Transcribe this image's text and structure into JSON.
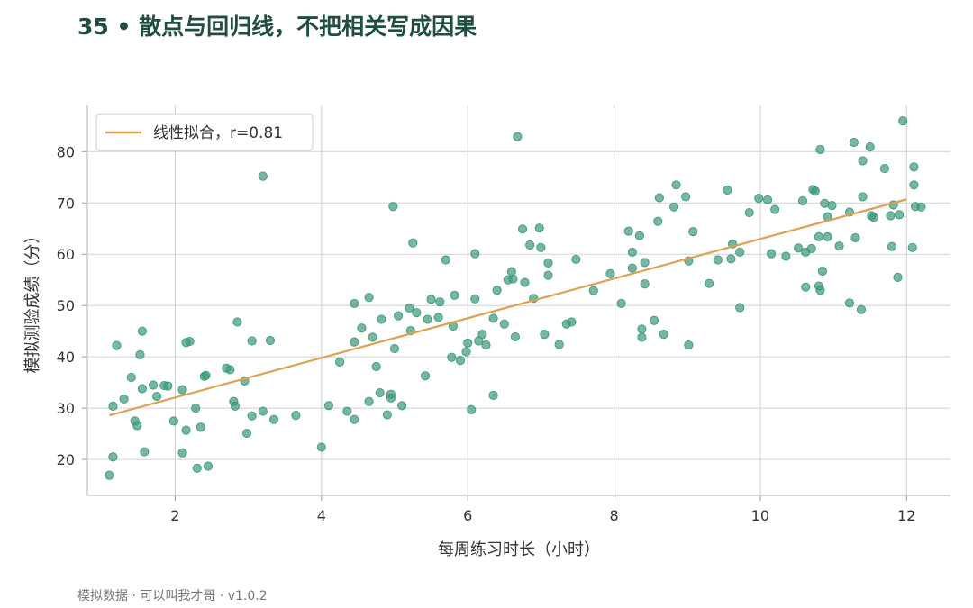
{
  "page": {
    "title": "35 • 散点与回归线，不把相关写成因果",
    "footer": "模拟数据 · 可以叫我才哥 · v1.0.2"
  },
  "colors": {
    "title": "#1f4e3d",
    "point": "#3a9a76",
    "line": "#e0a04f",
    "grid": "#d0d0d0",
    "axis": "#cccccc"
  },
  "chart_data": {
    "type": "scatter",
    "xlabel": "每周练习时长（小时）",
    "ylabel": "模拟测验成绩（分）",
    "xlim": [
      0.8,
      12.6
    ],
    "ylim": [
      13,
      89
    ],
    "xticks": [
      2,
      4,
      6,
      8,
      10,
      12
    ],
    "yticks": [
      20,
      30,
      40,
      50,
      60,
      70,
      80
    ],
    "grid": true,
    "legend": "top-left",
    "fit_line": {
      "name": "线性拟合，r=0.81",
      "x": [
        1.1,
        12.0
      ],
      "y": [
        28.6,
        70.7
      ]
    },
    "points": [
      [
        1.1,
        16.9
      ],
      [
        1.15,
        20.5
      ],
      [
        1.15,
        30.4
      ],
      [
        1.2,
        42.2
      ],
      [
        1.3,
        31.8
      ],
      [
        1.4,
        36.0
      ],
      [
        1.45,
        27.5
      ],
      [
        1.48,
        26.6
      ],
      [
        1.52,
        40.4
      ],
      [
        1.55,
        45.0
      ],
      [
        1.55,
        33.8
      ],
      [
        1.58,
        21.5
      ],
      [
        1.7,
        34.5
      ],
      [
        1.75,
        32.3
      ],
      [
        1.85,
        34.4
      ],
      [
        1.9,
        34.3
      ],
      [
        1.98,
        27.5
      ],
      [
        2.1,
        21.3
      ],
      [
        2.1,
        33.6
      ],
      [
        2.15,
        25.7
      ],
      [
        2.15,
        42.8
      ],
      [
        2.2,
        43.0
      ],
      [
        2.28,
        30.0
      ],
      [
        2.3,
        18.3
      ],
      [
        2.35,
        26.3
      ],
      [
        2.4,
        36.2
      ],
      [
        2.42,
        36.4
      ],
      [
        2.45,
        18.7
      ],
      [
        2.7,
        37.8
      ],
      [
        2.75,
        37.5
      ],
      [
        2.8,
        31.3
      ],
      [
        2.82,
        30.4
      ],
      [
        2.85,
        46.8
      ],
      [
        2.95,
        35.3
      ],
      [
        2.98,
        25.1
      ],
      [
        3.05,
        28.5
      ],
      [
        3.05,
        43.1
      ],
      [
        3.2,
        75.2
      ],
      [
        3.2,
        29.4
      ],
      [
        3.3,
        43.2
      ],
      [
        3.35,
        27.8
      ],
      [
        3.65,
        28.6
      ],
      [
        4.0,
        22.4
      ],
      [
        4.1,
        30.5
      ],
      [
        4.25,
        39.0
      ],
      [
        4.35,
        29.4
      ],
      [
        4.45,
        27.8
      ],
      [
        4.45,
        42.9
      ],
      [
        4.45,
        50.4
      ],
      [
        4.55,
        45.6
      ],
      [
        4.65,
        31.3
      ],
      [
        4.65,
        51.6
      ],
      [
        4.7,
        43.8
      ],
      [
        4.75,
        38.1
      ],
      [
        4.8,
        33.0
      ],
      [
        4.82,
        47.3
      ],
      [
        4.9,
        28.7
      ],
      [
        4.95,
        32.7
      ],
      [
        4.95,
        32.0
      ],
      [
        4.98,
        69.3
      ],
      [
        5.0,
        41.6
      ],
      [
        5.05,
        48.0
      ],
      [
        5.1,
        30.5
      ],
      [
        5.2,
        49.5
      ],
      [
        5.22,
        45.1
      ],
      [
        5.25,
        62.2
      ],
      [
        5.3,
        48.6
      ],
      [
        5.42,
        36.3
      ],
      [
        5.45,
        47.3
      ],
      [
        5.5,
        51.2
      ],
      [
        5.6,
        47.7
      ],
      [
        5.62,
        50.7
      ],
      [
        5.7,
        58.9
      ],
      [
        5.78,
        39.9
      ],
      [
        5.8,
        46.0
      ],
      [
        5.82,
        52.0
      ],
      [
        5.9,
        39.3
      ],
      [
        5.98,
        41.0
      ],
      [
        6.0,
        42.7
      ],
      [
        6.05,
        29.7
      ],
      [
        6.1,
        51.3
      ],
      [
        6.1,
        60.1
      ],
      [
        6.15,
        43.1
      ],
      [
        6.2,
        44.4
      ],
      [
        6.25,
        42.3
      ],
      [
        6.35,
        32.5
      ],
      [
        6.35,
        47.5
      ],
      [
        6.4,
        53.0
      ],
      [
        6.5,
        46.4
      ],
      [
        6.55,
        55.0
      ],
      [
        6.6,
        56.6
      ],
      [
        6.62,
        55.2
      ],
      [
        6.65,
        43.9
      ],
      [
        6.68,
        82.9
      ],
      [
        6.75,
        64.9
      ],
      [
        6.78,
        54.5
      ],
      [
        6.85,
        61.8
      ],
      [
        6.9,
        51.4
      ],
      [
        6.98,
        65.1
      ],
      [
        7.0,
        61.3
      ],
      [
        7.05,
        44.4
      ],
      [
        7.1,
        55.9
      ],
      [
        7.1,
        58.3
      ],
      [
        7.25,
        42.4
      ],
      [
        7.35,
        46.4
      ],
      [
        7.42,
        46.8
      ],
      [
        7.48,
        59.0
      ],
      [
        7.72,
        52.9
      ],
      [
        7.95,
        56.2
      ],
      [
        8.1,
        50.4
      ],
      [
        8.2,
        64.5
      ],
      [
        8.25,
        60.4
      ],
      [
        8.25,
        57.3
      ],
      [
        8.35,
        63.6
      ],
      [
        8.38,
        45.4
      ],
      [
        8.38,
        43.8
      ],
      [
        8.42,
        54.2
      ],
      [
        8.42,
        58.4
      ],
      [
        8.55,
        47.1
      ],
      [
        8.6,
        66.4
      ],
      [
        8.62,
        71.0
      ],
      [
        8.68,
        44.4
      ],
      [
        8.82,
        69.2
      ],
      [
        8.85,
        73.5
      ],
      [
        8.98,
        71.2
      ],
      [
        9.02,
        42.3
      ],
      [
        9.02,
        58.7
      ],
      [
        9.08,
        64.4
      ],
      [
        9.3,
        54.3
      ],
      [
        9.42,
        58.9
      ],
      [
        9.55,
        72.5
      ],
      [
        9.6,
        59.1
      ],
      [
        9.62,
        62.0
      ],
      [
        9.72,
        60.4
      ],
      [
        9.72,
        49.6
      ],
      [
        9.85,
        68.1
      ],
      [
        9.98,
        70.9
      ],
      [
        10.1,
        70.6
      ],
      [
        10.15,
        60.1
      ],
      [
        10.2,
        68.7
      ],
      [
        10.35,
        59.6
      ],
      [
        10.52,
        61.2
      ],
      [
        10.58,
        70.4
      ],
      [
        10.62,
        60.4
      ],
      [
        10.62,
        53.6
      ],
      [
        10.7,
        61.1
      ],
      [
        10.72,
        72.6
      ],
      [
        10.75,
        72.3
      ],
      [
        10.8,
        63.4
      ],
      [
        10.8,
        53.8
      ],
      [
        10.82,
        80.4
      ],
      [
        10.82,
        53.0
      ],
      [
        10.85,
        56.7
      ],
      [
        10.88,
        69.9
      ],
      [
        10.92,
        63.4
      ],
      [
        10.92,
        67.3
      ],
      [
        10.98,
        69.5
      ],
      [
        11.08,
        61.6
      ],
      [
        11.22,
        68.2
      ],
      [
        11.22,
        50.5
      ],
      [
        11.28,
        81.8
      ],
      [
        11.3,
        63.2
      ],
      [
        11.38,
        49.2
      ],
      [
        11.4,
        78.2
      ],
      [
        11.4,
        71.2
      ],
      [
        11.5,
        80.9
      ],
      [
        11.52,
        67.5
      ],
      [
        11.55,
        67.2
      ],
      [
        11.7,
        76.7
      ],
      [
        11.78,
        67.5
      ],
      [
        11.8,
        61.5
      ],
      [
        11.82,
        69.6
      ],
      [
        11.88,
        55.5
      ],
      [
        11.9,
        67.7
      ],
      [
        11.95,
        86.0
      ],
      [
        12.08,
        61.3
      ],
      [
        12.1,
        77.0
      ],
      [
        12.1,
        73.5
      ],
      [
        12.12,
        69.3
      ],
      [
        12.2,
        69.2
      ]
    ]
  }
}
